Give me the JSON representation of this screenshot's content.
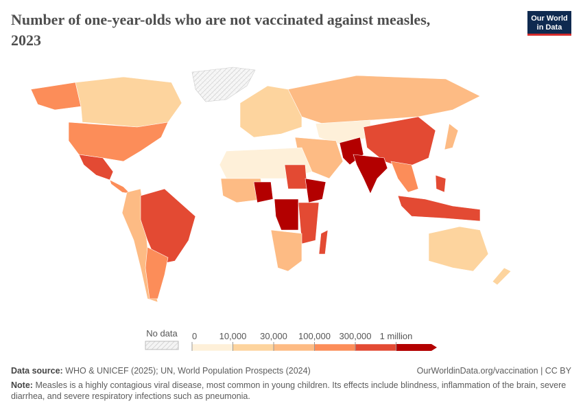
{
  "header": {
    "title": "Number of one-year-olds who are not vaccinated against measles, 2023",
    "logo": [
      "Our World",
      "in Data"
    ]
  },
  "legend": {
    "no_data": "No data",
    "ticks": [
      0,
      {
        "value": 10000,
        "label": "10,000"
      },
      {
        "value": 30000,
        "label": "30,000"
      },
      {
        "value": 100000,
        "label": "100,000"
      },
      {
        "value": 300000,
        "label": "300,000"
      },
      {
        "value": 1000000,
        "label": "1 million"
      }
    ],
    "colors": [
      "#fef0d9",
      "#fdd49e",
      "#fdbb84",
      "#fc8d59",
      "#e34a33",
      "#b30000"
    ]
  },
  "footer": {
    "source_label": "Data source:",
    "source": "WHO & UNICEF (2025); UN, World Population Prospects (2024)",
    "url": "OurWorldinData.org/vaccination | CC BY",
    "note_label": "Note:",
    "note": "Measles is a highly contagious viral disease, most common in young children. Its effects include blindness, inflammation of the brain, severe diarrhea, and severe respiratory infections such as pneumonia."
  }
}
